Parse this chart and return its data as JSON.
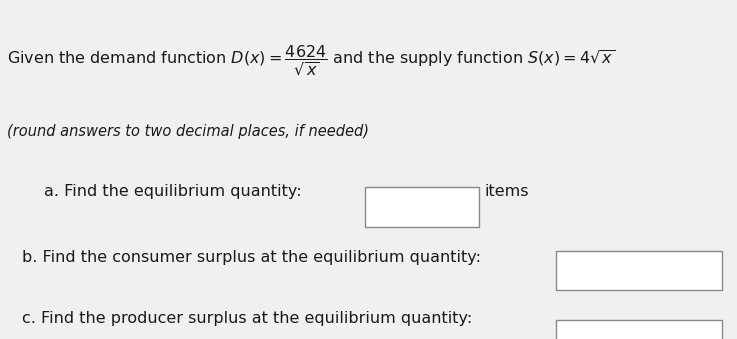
{
  "background_color": "#e8e8e8",
  "top_bar_color": "#c8c8c8",
  "white_area_color": "#f0f0f0",
  "box_facecolor": "#ffffff",
  "box_edgecolor": "#888888",
  "text_color": "#1a1a1a",
  "font_size_header": 11.5,
  "font_size_note": 10.5,
  "font_size_parts": 11.5,
  "line1_text": "Given the demand function ",
  "line1_math": "$D(x) = \\dfrac{4624}{\\sqrt{x}}$",
  "line1_mid": " and the supply function ",
  "line1_supply": "$S(x) = 4\\sqrt{x}$",
  "italic_note": "(round answers to two decimal places, if needed)",
  "part_a_label": "a. Find the equilibrium quantity:",
  "part_a_suffix": "items",
  "part_b_label": "b. Find the consumer surplus at the equilibrium quantity:",
  "part_c_label": "c. Find the producer surplus at the equilibrium quantity:"
}
